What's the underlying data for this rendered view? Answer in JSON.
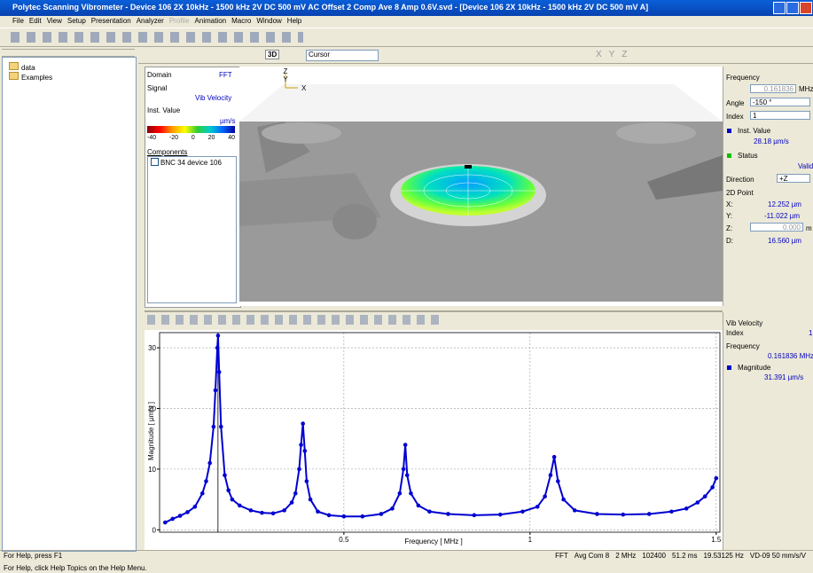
{
  "window": {
    "title": "Polytec Scanning Vibrometer - Device 106 2X 10kHz - 1500 kHz 2V DC 500 mV AC Offset 2 Comp Ave 8 Amp 0.6V.svd - [Device 106 2X 10kHz - 1500 kHz 2V DC 500 mV A]",
    "menu": [
      "File",
      "Edit",
      "View",
      "Setup",
      "Presentation",
      "Analyzer",
      "Profile",
      "Animation",
      "Macro",
      "Window",
      "Help"
    ]
  },
  "toolbar": {
    "view_mode": "3D",
    "cursor": "Cursor",
    "axes": [
      "X",
      "Y",
      "Z"
    ]
  },
  "tree": [
    "data",
    "Examples"
  ],
  "info_panel": {
    "domain_label": "Domain",
    "domain": "FFT",
    "signal_label": "Signal",
    "signal": "Vib Velocity",
    "value_label": "Inst. Value",
    "unit": "µm/s",
    "scale": [
      "-40",
      "-20",
      "0",
      "20",
      "40"
    ],
    "components_label": "Components",
    "component": "BNC 34 device 106"
  },
  "view3d": {
    "axes": [
      "Z",
      "Y",
      "X"
    ]
  },
  "point_panel": {
    "frequency_label": "Frequency",
    "frequency": "0.161836",
    "frequency_unit": "MHz",
    "angle_label": "Angle",
    "angle": "-150 °",
    "index_label": "Index",
    "index": "1",
    "value_label": "Inst. Value",
    "value": "28.18 µm/s",
    "status_label": "Status",
    "status": "Valid",
    "direction_label": "Direction",
    "direction": "+Z",
    "point_label": "2D Point",
    "x_label": "X:",
    "x": "12.252 µm",
    "y_label": "Y:",
    "y": "-11.022 µm",
    "z_label": "Z:",
    "z": "0.000",
    "z_unit": "m",
    "d_label": "D:",
    "d": "16.560 µm"
  },
  "chart_data": {
    "type": "scatter",
    "x_label": "Frequency [ MHz ]",
    "y_label": "Magnitude [ µm/s ]",
    "color": "#0000d0",
    "grid": true,
    "xlim": [
      0.005,
      1.51
    ],
    "ylim": [
      -0.4,
      32.5
    ],
    "xticks": [
      0.5,
      1,
      1.5
    ],
    "yticks": [
      0,
      10,
      20,
      30
    ],
    "cursor": 0.161836,
    "x": [
      0.02,
      0.04,
      0.06,
      0.08,
      0.1,
      0.12,
      0.13,
      0.14,
      0.15,
      0.155,
      0.16,
      0.162,
      0.165,
      0.17,
      0.18,
      0.19,
      0.2,
      0.22,
      0.25,
      0.28,
      0.31,
      0.34,
      0.36,
      0.37,
      0.38,
      0.385,
      0.39,
      0.395,
      0.4,
      0.41,
      0.43,
      0.46,
      0.5,
      0.55,
      0.6,
      0.63,
      0.65,
      0.66,
      0.665,
      0.67,
      0.68,
      0.7,
      0.73,
      0.78,
      0.85,
      0.92,
      0.98,
      1.02,
      1.04,
      1.055,
      1.065,
      1.075,
      1.09,
      1.12,
      1.18,
      1.25,
      1.32,
      1.38,
      1.42,
      1.45,
      1.47,
      1.49,
      1.5
    ],
    "values": [
      1.2,
      1.8,
      2.3,
      2.9,
      3.8,
      6,
      8,
      11,
      17,
      23,
      30,
      32,
      26,
      17,
      9,
      6.5,
      5,
      4,
      3.2,
      2.8,
      2.7,
      3.2,
      4.5,
      6,
      10,
      14,
      17.5,
      13,
      8,
      5,
      3,
      2.4,
      2.2,
      2.2,
      2.6,
      3.5,
      6,
      10,
      14,
      9,
      6,
      4,
      3,
      2.6,
      2.4,
      2.5,
      3,
      3.8,
      5.5,
      9,
      12,
      8,
      5,
      3.2,
      2.6,
      2.5,
      2.6,
      3,
      3.5,
      4.5,
      5.5,
      7,
      8.5
    ]
  },
  "chart_panel": {
    "signal": "Vib Velocity",
    "index_label": "Index",
    "index": "1",
    "frequency_label": "Frequency",
    "frequency": "0.161836 MHz",
    "value_label": "Magnitude",
    "value": "31.391 µm/s"
  },
  "status": {
    "left": "For Help, press F1",
    "items": [
      "FFT",
      "Avg Com 8",
      "2 MHz",
      "102400",
      "51.2 ms",
      "19.53125 Hz",
      "VD-09 50 mm/s/V"
    ],
    "bottom": "For Help, click Help Topics on the Help Menu."
  }
}
